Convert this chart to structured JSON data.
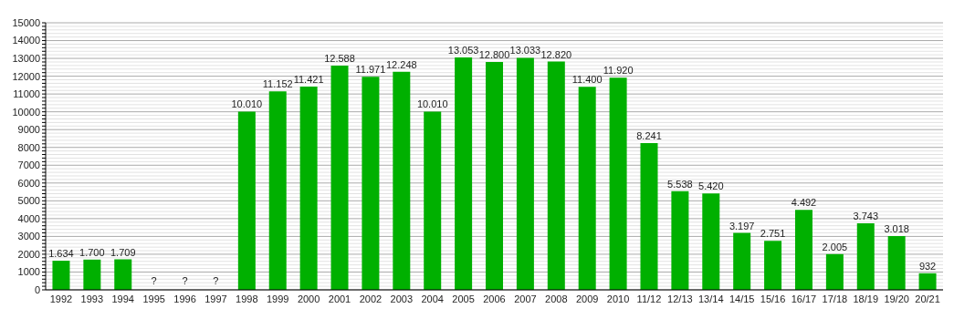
{
  "chart_data": {
    "type": "bar",
    "categories": [
      "1992",
      "1993",
      "1994",
      "1995",
      "1996",
      "1997",
      "1998",
      "1999",
      "2000",
      "2001",
      "2002",
      "2003",
      "2004",
      "2005",
      "2006",
      "2007",
      "2008",
      "2009",
      "2010",
      "11/12",
      "12/13",
      "13/14",
      "14/15",
      "15/16",
      "16/17",
      "17/18",
      "18/19",
      "19/20",
      "20/21"
    ],
    "values": [
      1634,
      1700,
      1709,
      null,
      null,
      null,
      10010,
      11152,
      11421,
      12588,
      11971,
      12248,
      10010,
      13053,
      12800,
      13033,
      12820,
      11400,
      11920,
      8241,
      5538,
      5420,
      3197,
      2751,
      4492,
      2005,
      3743,
      3018,
      932
    ],
    "value_labels": [
      "1.634",
      "1.700",
      "1.709",
      "?",
      "?",
      "?",
      "10.010",
      "11.152",
      "11.421",
      "12.588",
      "11.971",
      "12.248",
      "10.010",
      "13.053",
      "12.800",
      "13.033",
      "12.820",
      "11.400",
      "11.920",
      "8.241",
      "5.538",
      "5.420",
      "3.197",
      "2.751",
      "4.492",
      "2.005",
      "3.743",
      "3.018",
      "932"
    ],
    "color": "#00b000",
    "ylim": [
      0,
      15000
    ],
    "yticks": [
      0,
      {
        "value": 200,
        "label": null
      },
      {
        "value": 400,
        "label": null
      },
      {
        "value": 600,
        "label": null
      },
      {
        "value": 800,
        "label": null
      },
      1000,
      {
        "value": 1200,
        "label": null
      },
      {
        "value": 1400,
        "label": null
      },
      {
        "value": 1600,
        "label": null
      },
      {
        "value": 1800,
        "label": null
      },
      2000,
      {
        "value": 2200,
        "label": null
      },
      {
        "value": 2400,
        "label": null
      },
      {
        "value": 2600,
        "label": null
      },
      {
        "value": 2800,
        "label": null
      },
      3000,
      {
        "value": 3200,
        "label": null
      },
      {
        "value": 3400,
        "label": null
      },
      {
        "value": 3600,
        "label": null
      },
      {
        "value": 3800,
        "label": null
      },
      4000,
      {
        "value": 4200,
        "label": null
      },
      {
        "value": 4400,
        "label": null
      },
      {
        "value": 4600,
        "label": null
      },
      {
        "value": 4800,
        "label": null
      },
      5000,
      {
        "value": 5200,
        "label": null
      },
      {
        "value": 5400,
        "label": null
      },
      {
        "value": 5600,
        "label": null
      },
      {
        "value": 5800,
        "label": null
      },
      6000,
      {
        "value": 6200,
        "label": null
      },
      {
        "value": 6400,
        "label": null
      },
      {
        "value": 6600,
        "label": null
      },
      {
        "value": 6800,
        "label": null
      },
      7000,
      {
        "value": 7200,
        "label": null
      },
      {
        "value": 7400,
        "label": null
      },
      {
        "value": 7600,
        "label": null
      },
      {
        "value": 7800,
        "label": null
      },
      8000,
      {
        "value": 8200,
        "label": null
      },
      {
        "value": 8400,
        "label": null
      },
      {
        "value": 8600,
        "label": null
      },
      {
        "value": 8800,
        "label": null
      },
      9000,
      {
        "value": 9200,
        "label": null
      },
      {
        "value": 9400,
        "label": null
      },
      {
        "value": 9600,
        "label": null
      },
      {
        "value": 9800,
        "label": null
      },
      10000,
      {
        "value": 10200,
        "label": null
      },
      {
        "value": 10400,
        "label": null
      },
      {
        "value": 10600,
        "label": null
      },
      {
        "value": 10800,
        "label": null
      },
      11000,
      {
        "value": 11200,
        "label": null
      },
      {
        "value": 11400,
        "label": null
      },
      {
        "value": 11600,
        "label": null
      },
      {
        "value": 11800,
        "label": null
      },
      12000,
      {
        "value": 12200,
        "label": null
      },
      {
        "value": 12400,
        "label": null
      },
      {
        "value": 12600,
        "label": null
      },
      {
        "value": 12800,
        "label": null
      },
      13000,
      {
        "value": 13200,
        "label": null
      },
      {
        "value": 13400,
        "label": null
      },
      {
        "value": 13600,
        "label": null
      },
      {
        "value": 13800,
        "label": null
      },
      14000,
      {
        "value": 14200,
        "label": null
      },
      {
        "value": 14400,
        "label": null
      },
      {
        "value": 14600,
        "label": null
      },
      {
        "value": 14800,
        "label": null
      },
      15000
    ],
    "grid": "y"
  }
}
